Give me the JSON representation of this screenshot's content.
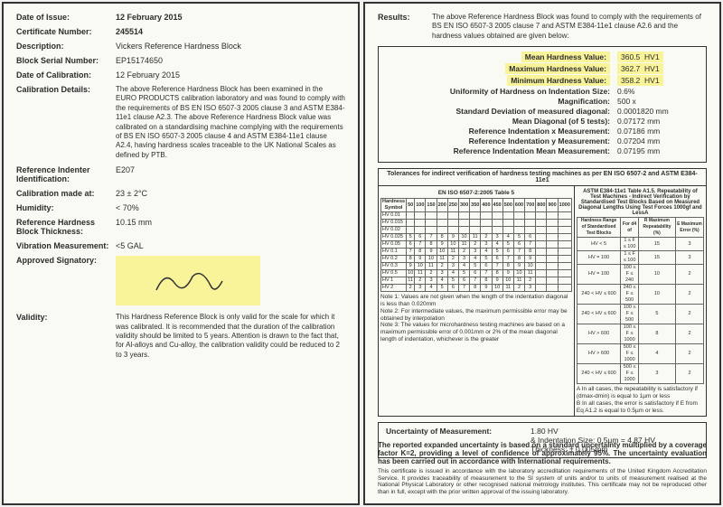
{
  "left": {
    "dateIssue": {
      "label": "Date of Issue:",
      "value": "12 February 2015"
    },
    "certNo": {
      "label": "Certificate Number:",
      "value": "245514"
    },
    "desc": {
      "label": "Description:",
      "value": "Vickers Reference Hardness Block"
    },
    "serial": {
      "label": "Block Serial Number:",
      "value": "EP15174650"
    },
    "dateCal": {
      "label": "Date of Calibration:",
      "value": "12 February 2015"
    },
    "calDetails": {
      "label": "Calibration Details:",
      "value": "The above Reference Hardness Block has been examined in the EURO PRODUCTS calibration laboratory and was found to comply with the requirements of BS EN ISO 6507-3 2005 clause 3 and ASTM E384-11e1 clause A2.3. The above Reference Hardness Block value was calibrated on a standardising machine complying with the requirements of BS EN ISO 6507-3 2005 clause 4 and ASTM E384-11e1 clause A2.4, having hardness scales traceable to the UK National Scales as defined by PTB."
    },
    "refInd": {
      "label": "Reference Indenter Identification:",
      "value": "E207"
    },
    "calAt": {
      "label": "Calibration made at:",
      "value": "23 ± 2°C"
    },
    "humidity": {
      "label": "Humidity:",
      "value": "< 70%"
    },
    "thickness": {
      "label": "Reference Hardness Block Thickness:",
      "value": "10.15 mm"
    },
    "vibration": {
      "label": "Vibration Measurement:",
      "value": "<5 GAL"
    },
    "approved": {
      "label": "Approved Signatory:"
    },
    "validity": {
      "label": "Validity:",
      "value": "This Hardness Reference Block is only valid for the scale for which it was calibrated. It is recommended that the duration of the calibration validity should be limited to 5 years. Attention is drawn to the fact that, for Al-alloys and Cu-alloy, the calibration validity could be reduced to 2 to 3 years."
    }
  },
  "right": {
    "resultsLabel": "Results:",
    "resultsIntro": "The above Reference Hardness Block was found to comply with the requirements of BS EN ISO 6507-3 2005 clause 7 and ASTM E384-11e1 clause A2.6 and the hardness values obtained are given below:",
    "mean": {
      "label": "Mean Hardness Value:",
      "val": "360.5",
      "unit": "HV1"
    },
    "max": {
      "label": "Maximum Hardness Value:",
      "val": "362.7",
      "unit": "HV1"
    },
    "min": {
      "label": "Minimum Hardness Value:",
      "val": "358.2",
      "unit": "HV1"
    },
    "uniformity": {
      "label": "Uniformity of Hardness on Indentation Size:",
      "val": "0.6%"
    },
    "magnification": {
      "label": "Magnification:",
      "val": "500 x"
    },
    "stddev": {
      "label": "Standard Deviation of measured diagonal:",
      "val": "0.0001820 mm"
    },
    "meanDiag": {
      "label": "Mean Diagonal (of 5 tests):",
      "val": "0.07172 mm"
    },
    "refX": {
      "label": "Reference Indentation x Measurement:",
      "val": "0.07186 mm"
    },
    "refY": {
      "label": "Reference Indentation y Measurement:",
      "val": "0.07204 mm"
    },
    "refMean": {
      "label": "Reference Indentation Mean Measurement:",
      "val": "0.07195 mm"
    },
    "tolTitle": "Tolerances for indirect verification of hardness testing machines as per EN ISO 6507-2 and ASTM E384-11e1",
    "tolLeft": "EN ISO 6507-2:2005 Table 5",
    "tolRight": "ASTM E384-11e1 Table A1.5. Repeatability of Test Machines - Indirect Verification by Standardised Test Blocks Based on Measured Diagonal Lengths Using Test Forces 1000gf and LessA",
    "leftTableRows": [
      "HV 0.01",
      "HV 0.015",
      "HV 0.02",
      "HV 0.025",
      "HV 0.05",
      "HV 0.1",
      "HV 0.2",
      "HV 0.3",
      "HV 0.5",
      "HV 1",
      "HV 2"
    ],
    "leftTableCols": [
      "50",
      "100",
      "150",
      "200",
      "250",
      "300",
      "350",
      "400",
      "450",
      "500",
      "600",
      "700",
      "800",
      "900",
      "1000"
    ],
    "rightTableHeaders": [
      "Hardness Range of Standardised Test Blocks",
      "For d4 of",
      "R Maximum Repeatability (%)",
      "E Maximum Error (%)"
    ],
    "rightTableRows": [
      [
        "HV < 5",
        "1 ≤ F ≤ 100",
        "15",
        "3"
      ],
      [
        "HV = 100",
        "1 ≤ F ≤ 100",
        "15",
        "3"
      ],
      [
        "HV = 100",
        "100 ≤ F ≤ 240",
        "10",
        "2"
      ],
      [
        "240 < HV ≤ 600",
        "240 ≤ F ≤ 500",
        "10",
        "2"
      ],
      [
        "240 < HV ≤ 600",
        "100 ≤ F ≤ 500",
        "5",
        "2"
      ],
      [
        "HV > 600",
        "100 ≤ F ≤ 1000",
        "8",
        "2"
      ],
      [
        "HV > 600",
        "500 ≤ F ≤ 1000",
        "4",
        "2"
      ],
      [
        "240 < HV ≤ 600",
        "500 ≤ F ≤ 1000",
        "3",
        "2"
      ]
    ],
    "note1": "Note 1: Values are not given when the length of the indentation diagonal is less than 0.020mm",
    "note2": "Note 2: For intermediate values, the maximum permissible error may be obtained by interpolation",
    "note3": "Note 3: The values for microhardness testing machines are based on a maximum permissible error of 0.001mm or 2% of the mean diagonal length of indentation, whichever is the greater",
    "rightNote1": "A In all cases, the repeatability is satisfactory if (dmax-dmin) is equal to 1µm or less",
    "rightNote2": "B In all cases, the error is satisfactory if E from Eq A1.2 is equal to 0.5µm or less.",
    "uom": {
      "label": "Uncertainty of Measurement:",
      "line1": "1.80 HV",
      "line2": "& Indentation Size: 0.5µm = 4.87 HV",
      "line3": "Thickness: ± 0.005mm"
    },
    "footerBold": "The reported expanded uncertainty is based on a standard uncertainty multiplied by a coverage factor K=2, providing a level of confidence of approximately 95%. The uncertainty evaluation has been carried out in accordance with International requirements.",
    "footerSmall": "This certificate is issued in accordance with the laboratory accreditation requirements of the United Kingdom Accreditation Service. It provides traceability of measurement to the SI system of units and/or to units of measurement realised at the National Physical Laboratory or other recognised national metrology institutes. This certificate may not be reproduced other than in full, except with the prior written approval of the issuing laboratory."
  }
}
